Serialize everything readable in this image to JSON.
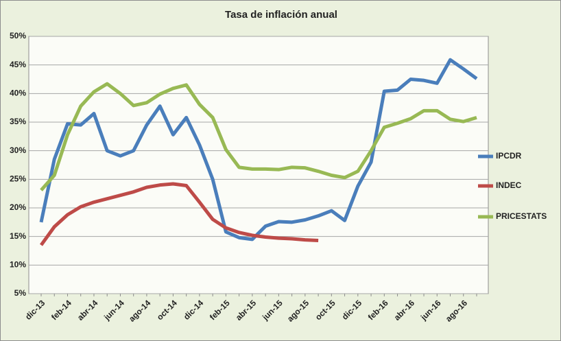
{
  "chart_data": {
    "type": "line",
    "title": "Tasa de inflación anual",
    "categories": [
      "dic-13",
      null,
      "feb-14",
      null,
      "abr-14",
      null,
      "jun-14",
      null,
      "ago-14",
      null,
      "oct-14",
      null,
      "dic-14",
      null,
      "feb-15",
      null,
      "abr-15",
      null,
      "jun-15",
      null,
      "ago-15",
      null,
      "oct-15",
      null,
      "dic-15",
      null,
      "feb-16",
      null,
      "abr-16",
      null,
      "jun-16",
      null,
      "ago-16",
      null
    ],
    "series": [
      {
        "name": "IPCDR",
        "color": "#4a7ebb",
        "values": [
          17.5,
          28.5,
          34.7,
          34.5,
          36.5,
          30,
          29.1,
          30,
          34.5,
          37.8,
          32.8,
          35.8,
          31,
          25,
          15.8,
          14.8,
          14.5,
          16.8,
          17.6,
          17.5,
          17.9,
          18.6,
          19.5,
          17.8,
          23.8,
          28,
          40.4,
          40.6,
          42.5,
          42.3,
          41.8,
          45.9,
          44.3,
          42.6
        ]
      },
      {
        "name": "INDEC",
        "color": "#be4b48",
        "values": [
          13.5,
          16.7,
          18.8,
          20.2,
          21,
          21.6,
          22.2,
          22.8,
          23.6,
          24,
          24.2,
          23.9,
          21,
          18,
          16.5,
          15.7,
          15.2,
          14.9,
          14.7,
          14.6,
          14.4,
          14.3,
          null,
          null,
          null,
          null,
          null,
          null,
          null,
          null,
          null,
          null,
          null,
          null
        ]
      },
      {
        "name": "PRICESTATS",
        "color": "#98b954",
        "values": [
          23.1,
          25.7,
          32.8,
          37.8,
          40.3,
          41.7,
          40,
          37.9,
          38.4,
          39.9,
          40.9,
          41.5,
          38.1,
          35.8,
          30.2,
          27.1,
          26.8,
          26.8,
          26.7,
          27.1,
          27,
          26.4,
          25.7,
          25.3,
          26.4,
          30,
          34.1,
          34.8,
          35.6,
          37,
          37,
          35.5,
          35.1,
          35.8
        ]
      }
    ],
    "ylim": [
      5,
      50
    ],
    "yticks": [
      {
        "value": 5,
        "label": "5%"
      },
      {
        "value": 10,
        "label": "10%"
      },
      {
        "value": 15,
        "label": "15%"
      },
      {
        "value": 20,
        "label": "20%"
      },
      {
        "value": 25,
        "label": "25%"
      },
      {
        "value": 30,
        "label": "30%"
      },
      {
        "value": 35,
        "label": "35%"
      },
      {
        "value": 40,
        "label": "40%"
      },
      {
        "value": 45,
        "label": "45%"
      },
      {
        "value": 50,
        "label": "50%"
      }
    ],
    "grid": true,
    "legend": "right"
  }
}
